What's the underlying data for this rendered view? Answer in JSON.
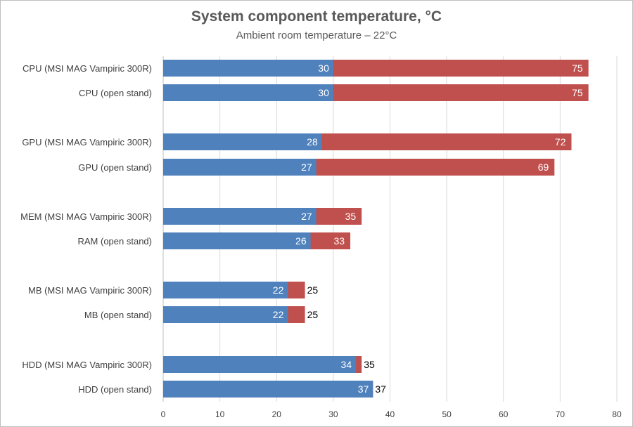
{
  "chart_data": {
    "type": "bar",
    "orientation": "horizontal",
    "stacked_overlay": true,
    "title": "System component temperature, °C",
    "subtitle": "Ambient room temperature – 22°C",
    "xlabel": "",
    "ylabel": "",
    "xlim": [
      0,
      80
    ],
    "x_ticks": [
      0,
      10,
      20,
      30,
      40,
      50,
      60,
      70,
      80
    ],
    "grid": "vertical",
    "legend": "none",
    "categories": [
      "CPU (MSI MAG Vampiric 300R)",
      "CPU (open stand)",
      "GPU (MSI MAG Vampiric 300R)",
      "GPU (open stand)",
      "MEM (MSI MAG Vampiric 300R)",
      "RAM (open stand)",
      "MB (MSI MAG Vampiric 300R)",
      "MB (open stand)",
      "HDD (MSI MAG Vampiric 300R)",
      "HDD (open stand)"
    ],
    "groups": [
      [
        0,
        1
      ],
      [
        2,
        3
      ],
      [
        4,
        5
      ],
      [
        6,
        7
      ],
      [
        8,
        9
      ]
    ],
    "series": [
      {
        "values": [
          30,
          30,
          28,
          27,
          27,
          26,
          22,
          22,
          34,
          37
        ],
        "color": "#4f81bd"
      },
      {
        "values": [
          75,
          75,
          72,
          69,
          35,
          33,
          25,
          25,
          35,
          37
        ],
        "color": "#c0504d"
      }
    ]
  }
}
